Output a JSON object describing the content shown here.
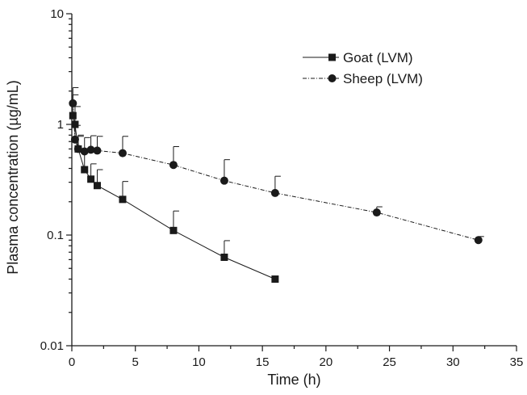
{
  "chart_data": {
    "type": "line",
    "xlabel": "Time (h)",
    "ylabel": "Plasma concentration (µg/mL)",
    "xlim": [
      0,
      35
    ],
    "ylim": [
      0.01,
      10
    ],
    "yscale": "log",
    "x_ticks": [
      0,
      5,
      10,
      15,
      20,
      25,
      30,
      35
    ],
    "x_tick_labels": [
      "0",
      "5",
      "10",
      "15",
      "20",
      "25",
      "30",
      "35"
    ],
    "y_ticks": [
      0.01,
      0.1,
      1,
      10
    ],
    "y_tick_labels": [
      "0.01",
      "0.1",
      "1",
      "10"
    ],
    "grid": false,
    "legend_position": "top-right",
    "series": [
      {
        "name": "Goat (LVM)",
        "marker": "square",
        "line_style": "solid",
        "color": "#1a1a1a",
        "x": [
          0.083,
          0.25,
          0.5,
          1,
          1.5,
          2,
          4,
          8,
          12,
          16
        ],
        "y": [
          1.2,
          1.0,
          0.6,
          0.39,
          0.32,
          0.28,
          0.21,
          0.11,
          0.063,
          0.04
        ],
        "error_upper": [
          0.65,
          0.45,
          0.2,
          0.19,
          0.12,
          0.11,
          0.095,
          0.055,
          0.026,
          0
        ]
      },
      {
        "name": "Sheep (LVM)",
        "marker": "circle",
        "line_style": "dash-dot",
        "color": "#1a1a1a",
        "x": [
          0.083,
          0.25,
          0.5,
          1,
          1.5,
          2,
          4,
          8,
          12,
          16,
          24,
          32
        ],
        "y": [
          1.55,
          0.73,
          0.6,
          0.57,
          0.59,
          0.58,
          0.55,
          0.43,
          0.31,
          0.24,
          0.16,
          0.09
        ],
        "error_upper": [
          0.6,
          0.25,
          0.18,
          0.19,
          0.2,
          0.2,
          0.23,
          0.2,
          0.17,
          0.1,
          0.02,
          0.007
        ]
      }
    ]
  }
}
